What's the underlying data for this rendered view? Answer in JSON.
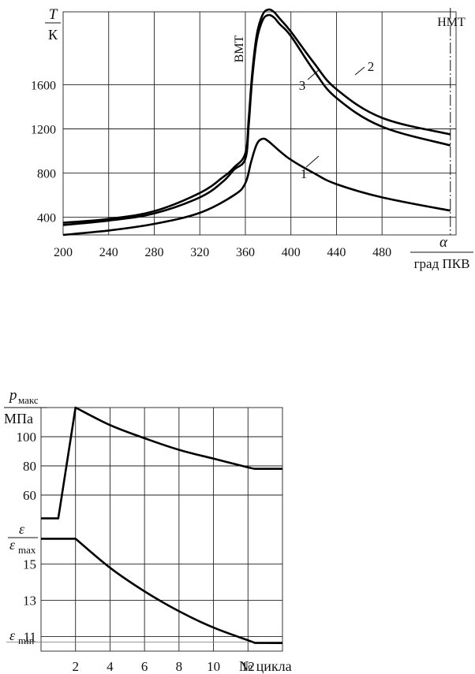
{
  "chart_data": [
    {
      "type": "line",
      "ylabel_top": "T",
      "ylabel_bottom": "К",
      "xlabel_top": "α",
      "xlabel_bottom": "град ПКВ",
      "xlim": [
        200,
        545
      ],
      "ylim": [
        240,
        2260
      ],
      "x_ticks": [
        200,
        240,
        280,
        320,
        360,
        400,
        440,
        480
      ],
      "y_ticks": [
        400,
        800,
        1200,
        1600
      ],
      "grid": true,
      "annotations": {
        "vmt_label": "ВМТ",
        "vmt_x": 360,
        "nmt_label": "НМТ",
        "nmt_x": 540
      },
      "series": [
        {
          "label": "1",
          "x": [
            200,
            240,
            280,
            320,
            350,
            360,
            365,
            370,
            375,
            380,
            390,
            400,
            420,
            440,
            480,
            540
          ],
          "y": [
            240,
            280,
            340,
            440,
            600,
            710,
            900,
            1060,
            1110,
            1090,
            1000,
            920,
            800,
            700,
            580,
            460
          ]
        },
        {
          "label": "2",
          "x": [
            200,
            240,
            280,
            320,
            340,
            350,
            360,
            363,
            366,
            370,
            375,
            380,
            385,
            390,
            400,
            420,
            440,
            480,
            540
          ],
          "y": [
            350,
            385,
            455,
            620,
            760,
            850,
            980,
            1300,
            1700,
            2050,
            2230,
            2280,
            2260,
            2200,
            2080,
            1800,
            1560,
            1300,
            1150
          ]
        },
        {
          "label": "3",
          "x": [
            200,
            240,
            280,
            320,
            340,
            350,
            360,
            363,
            366,
            370,
            375,
            380,
            385,
            390,
            400,
            420,
            440,
            480,
            540
          ],
          "y": [
            330,
            370,
            435,
            580,
            720,
            830,
            930,
            1240,
            1650,
            2000,
            2180,
            2230,
            2210,
            2150,
            2040,
            1730,
            1480,
            1220,
            1050
          ]
        }
      ]
    },
    {
      "type": "line",
      "title": "",
      "top": {
        "ylabel_main": "p",
        "ylabel_sub": "макс",
        "ylabel_unit": "МПа",
        "ylim": [
          40,
          120
        ],
        "y_ticks": [
          60,
          80,
          100
        ],
        "x": [
          0,
          1,
          2,
          4,
          6,
          8,
          10,
          12,
          12.4,
          14
        ],
        "y": [
          44,
          44,
          120,
          108,
          99,
          91,
          85,
          79,
          78,
          78
        ]
      },
      "bottom": {
        "ylabel_main": "ε",
        "max_label": "ε",
        "max_sub": "max",
        "min_label": "ε",
        "min_sub": "min",
        "ylim": [
          10.2,
          17.2
        ],
        "y_ticks": [
          11,
          13,
          15
        ],
        "eps_min_level": 10.7,
        "x": [
          0,
          1,
          2,
          4,
          6,
          8,
          10,
          12,
          12.4,
          14
        ],
        "y": [
          16.4,
          16.4,
          16.4,
          14.8,
          13.5,
          12.4,
          11.5,
          10.8,
          10.65,
          10.65
        ]
      },
      "xlabel": "№ цикла",
      "xlim": [
        0,
        14
      ],
      "x_ticks": [
        2,
        4,
        6,
        8,
        10,
        12
      ],
      "grid": true
    }
  ]
}
